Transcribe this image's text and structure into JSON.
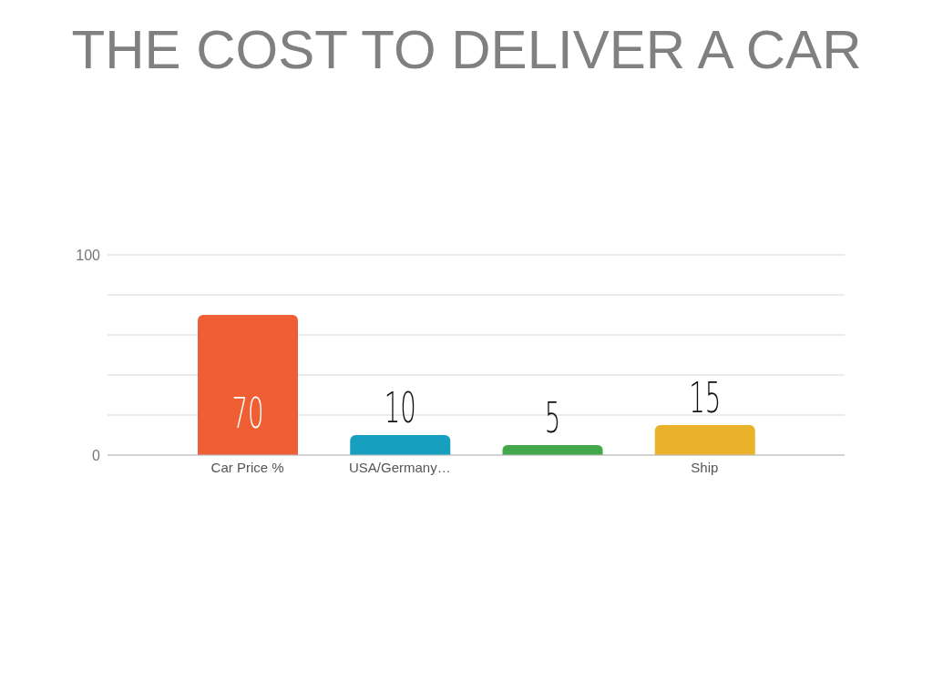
{
  "chart_data": {
    "type": "bar",
    "title": "THE COST TO DELIVER A CAR",
    "categories": [
      "Car Price %",
      "USA/Germany…",
      null,
      "Ship"
    ],
    "values": [
      70,
      10,
      5,
      15
    ],
    "colors": [
      "#f05f33",
      "#179fc0",
      "#43a84a",
      "#eab22a"
    ],
    "ylim": [
      0,
      100
    ],
    "yticks": [
      0,
      {
        "value": 20,
        "label": null
      },
      {
        "value": 40,
        "label": null
      },
      {
        "value": 60,
        "label": null
      },
      {
        "value": 80,
        "label": null
      },
      100
    ],
    "grid": "y",
    "data_labels": true
  }
}
